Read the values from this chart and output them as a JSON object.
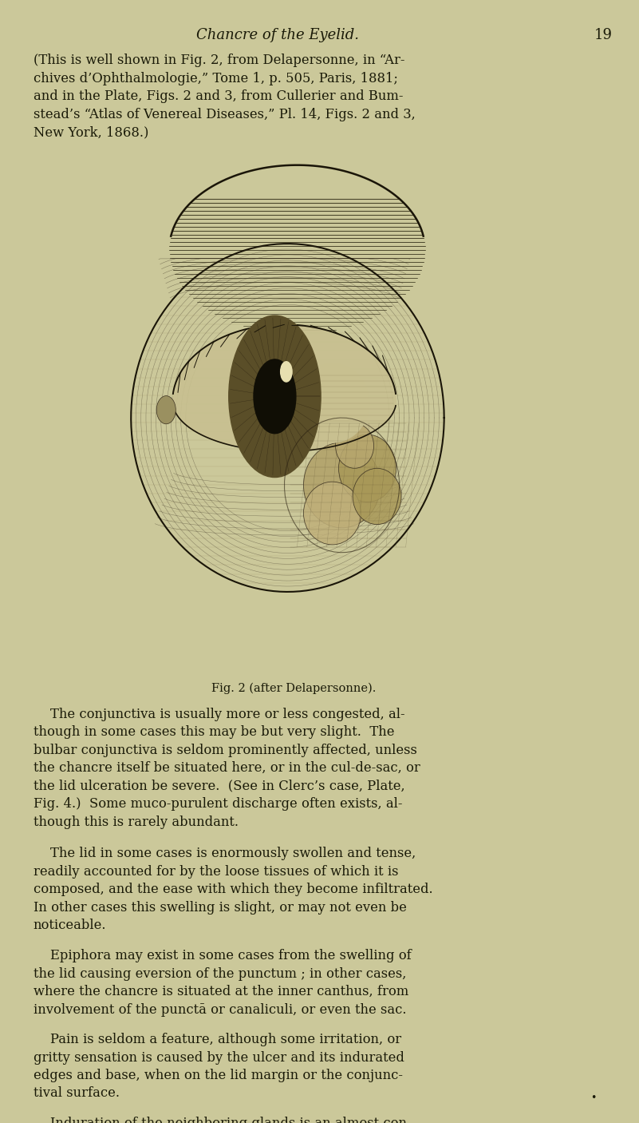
{
  "bg_color": "#cbc89a",
  "page_width": 8.01,
  "page_height": 14.06,
  "dpi": 100,
  "header_italic": "Chancre of the Eyelid.",
  "header_page_num": "19",
  "header_fontsize": 13,
  "body_fontsize": 11.8,
  "caption_fontsize": 10.5,
  "intro_text": "(This is well shown in Fig. 2, from Delapersonne, in “Ar-\nchives d’Ophthalmologie,” Tome 1, p. 505, Paris, 1881;\nand in the Plate, Figs. 2 and 3, from Cullerier and Bum-\nstead’s “Atlas of Venereal Diseases,” Pl. 14, Figs. 2 and 3,\nNew York, 1868.)",
  "caption": "Fig. 2 (after Delapersonne).",
  "paragraphs": [
    "    The conjunctiva is usually more or less congested, al-\nthough in some cases this may be but very slight.  The\nbulbar conjunctiva is seldom prominently affected, unless\nthe chancre itself be situated here, or in the cul-de-sac, or\nthe lid ulceration be severe.  (See in Clerc’s case, Plate,\nFig. 4.)  Some muco-purulent discharge often exists, al-\nthough this is rarely abundant.",
    "    The lid in some cases is enormously swollen and tense,\nreadily accounted for by the loose tissues of which it is\ncomposed, and the ease with which they become infiltrated.\nIn other cases this swelling is slight, or may not even be\nnoticeable.",
    "    Epiphora may exist in some cases from the swelling of\nthe lid causing eversion of the punctum ; in other cases,\nwhere the chancre is situated at the inner canthus, from\ninvolvement of the punctā or canaliculi, or even the sac.",
    "    Pain is seldom a feature, although some irritation, or\ngritty sensation is caused by the ulcer and its indurated\nedges and base, when on the lid margin or the conjunc-\ntival surface.",
    "    Induration of the neighboring glands is an almost con-\nstant symptom.  It may be very late in appearing, as in"
  ],
  "text_color": "#1a1a08",
  "header_color": "#1a1a08"
}
